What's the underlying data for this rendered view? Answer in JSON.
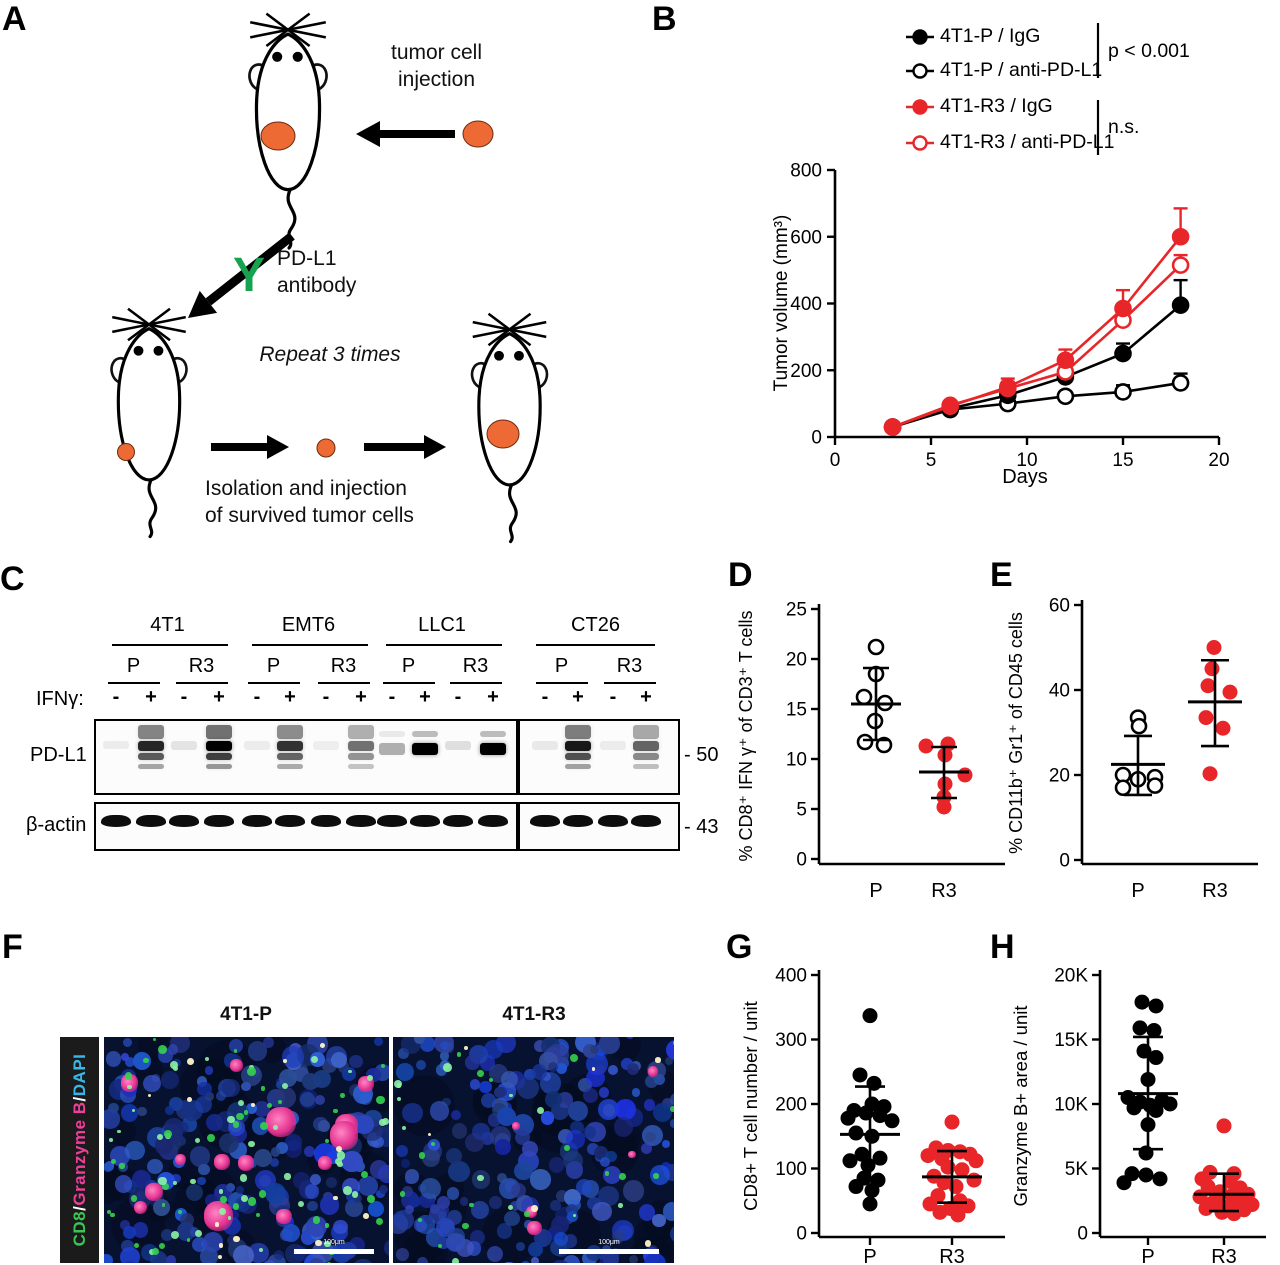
{
  "figure": {
    "letters": [
      "A",
      "B",
      "C",
      "D",
      "E",
      "F",
      "G",
      "H"
    ]
  },
  "colors": {
    "accent_red": "#e8262a",
    "tumor_orange": "#ee6a35",
    "antibody_green": "#17a24f",
    "if_green": "#3cc554",
    "if_magenta": "#ee3f9b",
    "if_cyan": "#39b7e9",
    "if_white": "#ffffff"
  },
  "panel_a": {
    "injection_label": "tumor cell\ninjection",
    "antibody_symbol": "Y",
    "antibody_label": "PD-L1\nantibody",
    "repeat_label": "Repeat 3 times",
    "isolation_label": "Isolation and injection\nof survived tumor cells"
  },
  "panel_b": {
    "stats": [
      {
        "label": "p < 0.001"
      },
      {
        "label": "n.s."
      }
    ]
  },
  "panel_c": {
    "ifn_label": "IFNγ:",
    "cell_lines": [
      {
        "name": "4T1"
      },
      {
        "name": "EMT6"
      },
      {
        "name": "LLC1"
      },
      {
        "name": "CT26"
      }
    ],
    "condition_labels": [
      "P",
      "R3"
    ],
    "rows": [
      {
        "label": "PD-L1",
        "marker": "- 50"
      },
      {
        "label": "β-actin",
        "marker": "- 43"
      }
    ],
    "pdl1_lanes": [
      {
        "ifn": "-",
        "pattern": "blank",
        "intensity": 0.06
      },
      {
        "ifn": "+",
        "pattern": "smear",
        "intensity": 0.85
      },
      {
        "ifn": "-",
        "pattern": "faint",
        "intensity": 0.15
      },
      {
        "ifn": "+",
        "pattern": "smear",
        "intensity": 1.0
      },
      {
        "ifn": "-",
        "pattern": "faint",
        "intensity": 0.1
      },
      {
        "ifn": "+",
        "pattern": "smear",
        "intensity": 0.8
      },
      {
        "ifn": "-",
        "pattern": "faint",
        "intensity": 0.08
      },
      {
        "ifn": "+",
        "pattern": "smear",
        "intensity": 0.55
      },
      {
        "ifn": "-",
        "pattern": "band",
        "intensity": 0.3
      },
      {
        "ifn": "+",
        "pattern": "band",
        "intensity": 1.0
      },
      {
        "ifn": "-",
        "pattern": "faint",
        "intensity": 0.18
      },
      {
        "ifn": "+",
        "pattern": "band",
        "intensity": 1.0
      },
      {
        "ifn": "-",
        "pattern": "faint",
        "intensity": 0.12
      },
      {
        "ifn": "+",
        "pattern": "smear",
        "intensity": 0.9
      },
      {
        "ifn": "-",
        "pattern": "faint",
        "intensity": 0.1
      },
      {
        "ifn": "+",
        "pattern": "smear",
        "intensity": 0.6
      }
    ],
    "actin_intensity": 0.95
  },
  "panel_f": {
    "channel_labels": [
      {
        "text": "CD8",
        "color": "#3cc554"
      },
      {
        "text": "/",
        "color": "#ffffff"
      },
      {
        "text": "Granzyme B",
        "color": "#ee3f9b"
      },
      {
        "text": "/",
        "color": "#ffffff"
      },
      {
        "text": "DAPI",
        "color": "#39b7e9"
      }
    ],
    "images": [
      {
        "title": "4T1-P",
        "scale_bar": "100μm",
        "magenta_blobs": 14,
        "green_specks": 85,
        "white_specks": 14
      },
      {
        "title": "4T1-R3",
        "scale_bar": "100μm",
        "magenta_blobs": 5,
        "green_specks": 30,
        "white_specks": 6
      }
    ]
  },
  "chart_data": [
    {
      "panel": "B",
      "type": "line",
      "xlabel": "Days",
      "ylabel": "Tumor volume (mm³)",
      "xlim": [
        0,
        20
      ],
      "ylim": [
        0,
        800
      ],
      "xticks": [
        0,
        5,
        10,
        15,
        20
      ],
      "yticks": [
        0,
        200,
        400,
        600,
        800
      ],
      "x": [
        3,
        6,
        9,
        12,
        15,
        18
      ],
      "series": [
        {
          "name": "4T1-P / IgG",
          "color": "#000000",
          "marker": "filled",
          "values": [
            30,
            85,
            125,
            180,
            250,
            395
          ],
          "errors": [
            8,
            12,
            15,
            15,
            30,
            75
          ]
        },
        {
          "name": "4T1-P / anti-PD-L1",
          "color": "#000000",
          "marker": "open",
          "values": [
            30,
            82,
            100,
            122,
            135,
            162
          ],
          "errors": [
            8,
            10,
            12,
            12,
            20,
            28
          ]
        },
        {
          "name": "4T1-R3 / IgG",
          "color": "#e8262a",
          "marker": "filled",
          "values": [
            30,
            92,
            150,
            230,
            385,
            600
          ],
          "errors": [
            8,
            15,
            25,
            32,
            55,
            85
          ]
        },
        {
          "name": "4T1-R3 / anti-PD-L1",
          "color": "#e8262a",
          "marker": "open",
          "values": [
            30,
            95,
            145,
            195,
            350,
            515
          ],
          "errors": [
            8,
            12,
            20,
            20,
            30,
            30
          ]
        }
      ],
      "legend_stats": [
        {
          "groups": [
            "4T1-P / IgG",
            "4T1-P / anti-PD-L1"
          ],
          "label": "p < 0.001"
        },
        {
          "groups": [
            "4T1-R3 / IgG",
            "4T1-R3 / anti-PD-L1"
          ],
          "label": "n.s."
        }
      ]
    },
    {
      "panel": "D",
      "type": "scatter",
      "ylabel": "% CD8⁺ IFN γ⁺ of CD3⁺ T cells",
      "ylim": [
        0,
        25
      ],
      "yticks": [
        0,
        5,
        10,
        15,
        20,
        25
      ],
      "categories": [
        "P",
        "R3"
      ],
      "groups": [
        {
          "name": "P",
          "marker": "open",
          "color": "#000000",
          "values": [
            21.2,
            18.5,
            16.2,
            15.6,
            13.8,
            11.7,
            11.4
          ],
          "dx": [
            0,
            0,
            -12,
            9,
            -1,
            -11,
            8
          ],
          "mean": 15.5,
          "sd_top": 19.1,
          "sd_bottom": 11.9
        },
        {
          "name": "R3",
          "marker": "filled",
          "color": "#e8262a",
          "values": [
            11.3,
            11.5,
            10.4,
            8.4,
            7.5,
            6.2,
            5.2
          ],
          "dx": [
            -18,
            4,
            1,
            21,
            1,
            0,
            0
          ],
          "mean": 8.7,
          "sd_top": 11.2,
          "sd_bottom": 6.1
        }
      ]
    },
    {
      "panel": "E",
      "type": "scatter",
      "ylabel": "% CD11b⁺ Gr1⁺ of CD45 cells",
      "ylim": [
        0,
        60
      ],
      "yticks": [
        0,
        20,
        40,
        60
      ],
      "categories": [
        "P",
        "R3"
      ],
      "groups": [
        {
          "name": "P",
          "marker": "open",
          "color": "#000000",
          "values": [
            33.5,
            31.5,
            20,
            19.5,
            19,
            17.5,
            17
          ],
          "dx": [
            0,
            1,
            -15,
            17,
            0,
            17,
            -15
          ],
          "mean": 22.5,
          "sd_top": 29.2,
          "sd_bottom": 15.3
        },
        {
          "name": "R3",
          "marker": "filled",
          "color": "#e8262a",
          "values": [
            50,
            45,
            41,
            39.5,
            33.5,
            31,
            20.3
          ],
          "dx": [
            -1,
            -3,
            -7,
            15,
            -9,
            8,
            -5
          ],
          "mean": 37.2,
          "sd_top": 47,
          "sd_bottom": 26.8
        }
      ]
    },
    {
      "panel": "G",
      "type": "scatter",
      "ylabel": "CD8+ T cell number / unit",
      "ylim": [
        0,
        400
      ],
      "yticks": [
        0,
        100,
        200,
        300,
        400
      ],
      "categories": [
        "P",
        "R3"
      ],
      "groups": [
        {
          "name": "P",
          "marker": "filled",
          "color": "#000000",
          "values": [
            337,
            245,
            232,
            200,
            196,
            190,
            186,
            182,
            178,
            174,
            155,
            150,
            122,
            116,
            112,
            105,
            85,
            82,
            72,
            66,
            45
          ],
          "dx": [
            0,
            -10,
            4,
            2,
            14,
            -16,
            -4,
            10,
            -22,
            22,
            -14,
            2,
            -8,
            10,
            -20,
            -2,
            -6,
            8,
            -14,
            2,
            0
          ],
          "mean": 153,
          "sd_top": 227,
          "sd_bottom": 80
        },
        {
          "name": "R3",
          "marker": "filled",
          "color": "#e8262a",
          "values": [
            172,
            132,
            128,
            126,
            122,
            120,
            115,
            112,
            102,
            98,
            88,
            82,
            78,
            72,
            58,
            50,
            45,
            42,
            38,
            32,
            28
          ],
          "dx": [
            0,
            -16,
            -4,
            8,
            18,
            -24,
            -10,
            24,
            -4,
            10,
            -18,
            22,
            -8,
            4,
            -14,
            8,
            -22,
            16,
            -2,
            -12,
            6
          ],
          "mean": 87,
          "sd_top": 127,
          "sd_bottom": 47
        }
      ]
    },
    {
      "panel": "H",
      "type": "scatter",
      "ylabel": "Granzyme B+ area / unit",
      "ylim": [
        0,
        20000
      ],
      "yticks": [
        0,
        5000,
        10000,
        15000,
        20000
      ],
      "ytick_labels": [
        "0",
        "5K",
        "10K",
        "15K",
        "20K"
      ],
      "categories": [
        "P",
        "R3"
      ],
      "groups": [
        {
          "name": "P",
          "marker": "filled",
          "color": "#000000",
          "values": [
            17900,
            17600,
            15900,
            15700,
            14100,
            13600,
            11900,
            10500,
            10300,
            10150,
            10000,
            9900,
            9700,
            9500,
            8400,
            6200,
            4600,
            4500,
            4200,
            3900
          ],
          "dx": [
            -6,
            8,
            -8,
            6,
            -4,
            8,
            0,
            -20,
            14,
            -8,
            22,
            2,
            -14,
            8,
            0,
            -2,
            -16,
            -2,
            12,
            -24
          ],
          "mean": 10800,
          "sd_top": 15200,
          "sd_bottom": 6500
        },
        {
          "name": "R3",
          "marker": "filled",
          "color": "#e8262a",
          "values": [
            8300,
            4700,
            4600,
            4200,
            4000,
            3600,
            3500,
            3200,
            3000,
            2900,
            2800,
            2600,
            2500,
            2300,
            2200,
            2000,
            1900,
            1800,
            1600,
            1500
          ],
          "dx": [
            0,
            -14,
            10,
            -22,
            6,
            -16,
            16,
            -4,
            24,
            8,
            -24,
            -8,
            16,
            -12,
            28,
            4,
            -18,
            20,
            -2,
            10
          ],
          "mean": 3000,
          "sd_top": 4600,
          "sd_bottom": 1700
        }
      ]
    }
  ]
}
